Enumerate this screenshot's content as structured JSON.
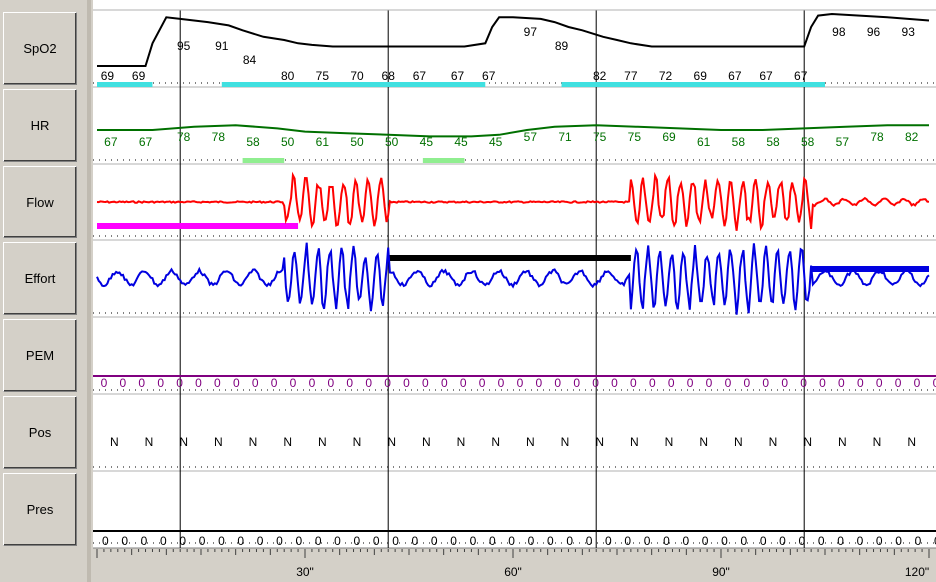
{
  "channels": [
    {
      "id": "spo2",
      "label": "SpO2"
    },
    {
      "id": "hr",
      "label": "HR"
    },
    {
      "id": "flow",
      "label": "Flow"
    },
    {
      "id": "effort",
      "label": "Effort"
    },
    {
      "id": "pem",
      "label": "PEM"
    },
    {
      "id": "pos",
      "label": "Pos"
    },
    {
      "id": "pres",
      "label": "Pres"
    }
  ],
  "colors": {
    "spo2": "#000000",
    "hr": "#007000",
    "flow": "#ff0000",
    "effort": "#0000e0",
    "pem": "#800080",
    "pos": "#000000",
    "pres": "#000000",
    "desat": "#40e0e0",
    "hr_event": "#90ee90",
    "flow_event": "#ff00ff",
    "effort_event_black": "#000000",
    "effort_event_blue": "#0000e0",
    "grid": "#000000",
    "background": "#ffffff",
    "timebar": "#d4d0c8"
  },
  "chart_data": {
    "type": "line",
    "x_unit": "seconds",
    "xlim": [
      0,
      120
    ],
    "time_labels": [
      {
        "t": 30,
        "label": "30\""
      },
      {
        "t": 60,
        "label": "60\""
      },
      {
        "t": 90,
        "label": "90\""
      },
      {
        "t": 120,
        "label": "120\""
      }
    ],
    "epoch_lines": [
      12,
      42,
      72,
      102
    ],
    "series": [
      {
        "name": "SpO2",
        "channel": "spo2",
        "points": [
          [
            0,
            66
          ],
          [
            7,
            66
          ],
          [
            8,
            80
          ],
          [
            10,
            96
          ],
          [
            12,
            95
          ],
          [
            16,
            93
          ],
          [
            19,
            91
          ],
          [
            21,
            88
          ],
          [
            24,
            84
          ],
          [
            27,
            82
          ],
          [
            29,
            80
          ],
          [
            31,
            79
          ],
          [
            34,
            78
          ],
          [
            42,
            78
          ],
          [
            53,
            78
          ],
          [
            56,
            80
          ],
          [
            57,
            90
          ],
          [
            58,
            96
          ],
          [
            60,
            96
          ],
          [
            64,
            95
          ],
          [
            66,
            93
          ],
          [
            68,
            90
          ],
          [
            70,
            88
          ],
          [
            73,
            84
          ],
          [
            75,
            82
          ],
          [
            77,
            80
          ],
          [
            80,
            78
          ],
          [
            90,
            78
          ],
          [
            102,
            78
          ],
          [
            103,
            90
          ],
          [
            104,
            97
          ],
          [
            106,
            98
          ],
          [
            110,
            97
          ],
          [
            114,
            96
          ],
          [
            117,
            95
          ],
          [
            120,
            94
          ]
        ],
        "ylim": [
          60,
          100
        ]
      },
      {
        "name": "HR",
        "channel": "hr",
        "points": [
          [
            0,
            60
          ],
          [
            8,
            60
          ],
          [
            14,
            62
          ],
          [
            20,
            63
          ],
          [
            26,
            61
          ],
          [
            30,
            59
          ],
          [
            36,
            58
          ],
          [
            42,
            57
          ],
          [
            48,
            56
          ],
          [
            54,
            56
          ],
          [
            58,
            57
          ],
          [
            62,
            60
          ],
          [
            66,
            62
          ],
          [
            72,
            63
          ],
          [
            78,
            62
          ],
          [
            84,
            61
          ],
          [
            90,
            60
          ],
          [
            96,
            60
          ],
          [
            102,
            61
          ],
          [
            108,
            62
          ],
          [
            114,
            63
          ],
          [
            120,
            63
          ]
        ],
        "ylim": [
          30,
          90
        ]
      }
    ],
    "value_labels": {
      "spo2": [
        {
          "t": 1.5,
          "v": "69",
          "row": "low"
        },
        {
          "t": 6,
          "v": "69",
          "row": "low"
        },
        {
          "t": 12.5,
          "v": "95",
          "row": "high"
        },
        {
          "t": 18,
          "v": "91",
          "row": "high"
        },
        {
          "t": 22,
          "v": "84",
          "row": "mid"
        },
        {
          "t": 27.5,
          "v": "80",
          "row": "low"
        },
        {
          "t": 32.5,
          "v": "75",
          "row": "low"
        },
        {
          "t": 37.5,
          "v": "70",
          "row": "low"
        },
        {
          "t": 42,
          "v": "68",
          "row": "low"
        },
        {
          "t": 46.5,
          "v": "67",
          "row": "low"
        },
        {
          "t": 52,
          "v": "67",
          "row": "low"
        },
        {
          "t": 56.5,
          "v": "67",
          "row": "low"
        },
        {
          "t": 62.5,
          "v": "97",
          "row": "top"
        },
        {
          "t": 67,
          "v": "89",
          "row": "high"
        },
        {
          "t": 72.5,
          "v": "82",
          "row": "low"
        },
        {
          "t": 77,
          "v": "77",
          "row": "low"
        },
        {
          "t": 82,
          "v": "72",
          "row": "low"
        },
        {
          "t": 87,
          "v": "69",
          "row": "low"
        },
        {
          "t": 92,
          "v": "67",
          "row": "low"
        },
        {
          "t": 96.5,
          "v": "67",
          "row": "low"
        },
        {
          "t": 101.5,
          "v": "67",
          "row": "low"
        },
        {
          "t": 107,
          "v": "98",
          "row": "top"
        },
        {
          "t": 112,
          "v": "96",
          "row": "top"
        },
        {
          "t": 117,
          "v": "93",
          "row": "top"
        }
      ],
      "hr": [
        {
          "t": 2,
          "v": "67",
          "row": "a"
        },
        {
          "t": 7,
          "v": "67",
          "row": "a"
        },
        {
          "t": 12.5,
          "v": "78",
          "row": "b"
        },
        {
          "t": 17.5,
          "v": "78",
          "row": "b"
        },
        {
          "t": 22.5,
          "v": "58",
          "row": "a"
        },
        {
          "t": 27.5,
          "v": "50",
          "row": "a"
        },
        {
          "t": 32.5,
          "v": "61",
          "row": "a"
        },
        {
          "t": 37.5,
          "v": "50",
          "row": "a"
        },
        {
          "t": 42.5,
          "v": "50",
          "row": "a"
        },
        {
          "t": 47.5,
          "v": "45",
          "row": "a"
        },
        {
          "t": 52.5,
          "v": "45",
          "row": "a"
        },
        {
          "t": 57.5,
          "v": "45",
          "row": "a"
        },
        {
          "t": 62.5,
          "v": "57",
          "row": "b"
        },
        {
          "t": 67.5,
          "v": "71",
          "row": "b"
        },
        {
          "t": 72.5,
          "v": "75",
          "row": "b"
        },
        {
          "t": 77.5,
          "v": "75",
          "row": "b"
        },
        {
          "t": 82.5,
          "v": "69",
          "row": "b"
        },
        {
          "t": 87.5,
          "v": "61",
          "row": "a"
        },
        {
          "t": 92.5,
          "v": "58",
          "row": "a"
        },
        {
          "t": 97.5,
          "v": "58",
          "row": "a"
        },
        {
          "t": 102.5,
          "v": "58",
          "row": "a"
        },
        {
          "t": 107.5,
          "v": "57",
          "row": "a"
        },
        {
          "t": 112.5,
          "v": "78",
          "row": "b"
        },
        {
          "t": 117.5,
          "v": "82",
          "row": "b"
        }
      ],
      "pem": [
        "0",
        "0",
        "0",
        "0",
        "0",
        "0",
        "0",
        "0",
        "0",
        "0",
        "0",
        "0",
        "0",
        "0",
        "0",
        "0",
        "0",
        "0",
        "0",
        "0",
        "0",
        "0",
        "0",
        "0",
        "0",
        "0",
        "0",
        "0",
        "0",
        "0",
        "0",
        "0",
        "0",
        "0",
        "0",
        "0",
        "0",
        "0",
        "0",
        "0",
        "0",
        "0",
        "0",
        "0",
        "0"
      ],
      "pos": [
        "N",
        "N",
        "N",
        "N",
        "N",
        "N",
        "N",
        "N",
        "N",
        "N",
        "N",
        "N",
        "N",
        "N",
        "N",
        "N",
        "N",
        "N",
        "N",
        "N",
        "N",
        "N",
        "N",
        "N"
      ],
      "pres": [
        "0",
        "0",
        "0",
        "0",
        "0",
        "0",
        "0",
        "0",
        "0",
        "0",
        "0",
        "0",
        "0",
        "0",
        "0",
        "0",
        "0",
        "0",
        "0",
        "0",
        "0",
        "0",
        "0",
        "0",
        "0",
        "0",
        "0",
        "0",
        "0",
        "0",
        "0",
        "0",
        "0",
        "0",
        "0",
        "0",
        "0",
        "0",
        "0",
        "0",
        "0",
        "0",
        "0",
        "0"
      ]
    },
    "events": {
      "spo2_desaturation": [
        [
          0,
          8
        ],
        [
          18,
          56
        ],
        [
          67,
          105
        ]
      ],
      "hr_event": [
        [
          21,
          27
        ],
        [
          47,
          53
        ]
      ],
      "flow_event": [
        [
          0,
          29
        ]
      ],
      "effort_event_black": [
        [
          42,
          77
        ]
      ],
      "effort_event_blue": [
        [
          103,
          120
        ]
      ]
    },
    "waveforms": {
      "flow": {
        "baseline_periods": [
          [
            0,
            27
          ],
          [
            42,
            77
          ]
        ],
        "burst_periods": [
          [
            27,
            42
          ],
          [
            77,
            103
          ]
        ],
        "tail": [
          [
            103,
            120
          ]
        ]
      },
      "effort": {
        "quiet_periods": [
          [
            0,
            27
          ],
          [
            42,
            77
          ]
        ],
        "burst_periods": [
          [
            27,
            42
          ],
          [
            77,
            103
          ]
        ],
        "tail": [
          [
            103,
            120
          ]
        ]
      }
    }
  }
}
